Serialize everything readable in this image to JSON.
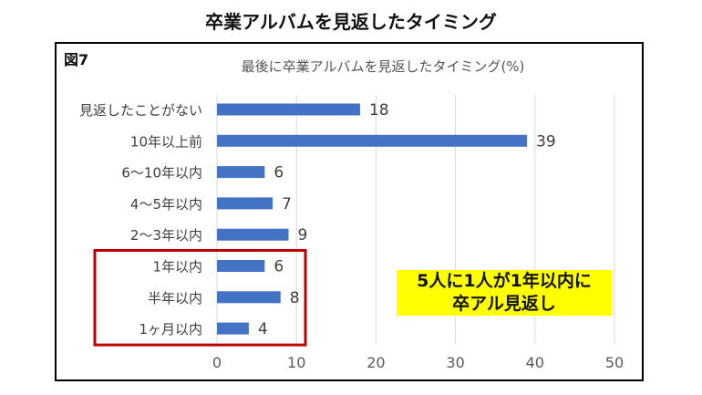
{
  "page_title": "卒業アルバムを見返したタイミング",
  "figure_label": "図7",
  "callout": {
    "line1": "5人に1人が1年以内に",
    "line2": "卒アル見返し",
    "color": "#ffff00"
  },
  "highlight_color": "#c00000",
  "chart_data": {
    "type": "bar",
    "orientation": "horizontal",
    "title": "最後に卒業アルバムを見返したタイミング(%)",
    "categories": [
      "見返したことがない",
      "10年以上前",
      "6～10年以内",
      "4～5年以内",
      "2～3年以内",
      "1年以内",
      "半年以内",
      "1ヶ月以内"
    ],
    "values": [
      18,
      39,
      6,
      7,
      9,
      6,
      8,
      4
    ],
    "xlim": [
      0,
      50
    ],
    "xticks": [
      0,
      10,
      20,
      30,
      40,
      50
    ],
    "grid": true,
    "bar_color": "#4472c4",
    "highlighted_categories": [
      "1年以内",
      "半年以内",
      "1ヶ月以内"
    ]
  }
}
